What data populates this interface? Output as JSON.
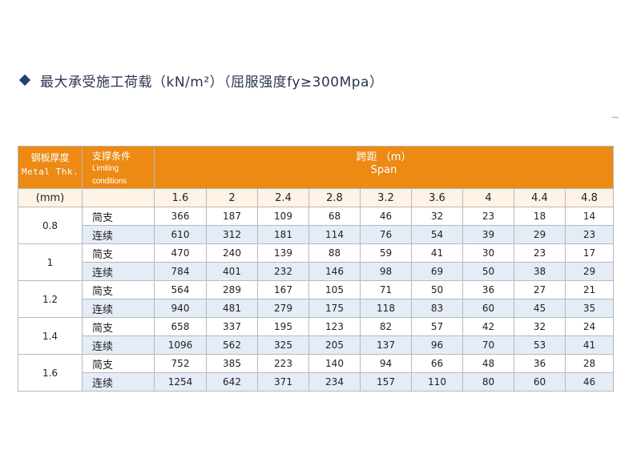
{
  "title": "最大承受施工荷载（kN/m²）（屈服强度fy≥300Mpa）",
  "table": {
    "header": {
      "thickness_cn": "钢板厚度",
      "thickness_en": "Metal Thk.",
      "support_cn": "支撑条件",
      "support_en": "Limiting conditions",
      "span_cn": "跨距 （m）",
      "span_en": "Span"
    },
    "unit": "(mm)",
    "spans": [
      "1.6",
      "2",
      "2.4",
      "2.8",
      "3.2",
      "3.6",
      "4",
      "4.4",
      "4.8"
    ],
    "groups": [
      {
        "thickness": "0.8",
        "rows": [
          {
            "condition": "简支",
            "values": [
              "366",
              "187",
              "109",
              "68",
              "46",
              "32",
              "23",
              "18",
              "14"
            ]
          },
          {
            "condition": "连续",
            "values": [
              "610",
              "312",
              "181",
              "114",
              "76",
              "54",
              "39",
              "29",
              "23"
            ]
          }
        ]
      },
      {
        "thickness": "1",
        "rows": [
          {
            "condition": "简支",
            "values": [
              "470",
              "240",
              "139",
              "88",
              "59",
              "41",
              "30",
              "23",
              "17"
            ]
          },
          {
            "condition": "连续",
            "values": [
              "784",
              "401",
              "232",
              "146",
              "98",
              "69",
              "50",
              "38",
              "29"
            ]
          }
        ]
      },
      {
        "thickness": "1.2",
        "rows": [
          {
            "condition": "简支",
            "values": [
              "564",
              "289",
              "167",
              "105",
              "71",
              "50",
              "36",
              "27",
              "21"
            ]
          },
          {
            "condition": "连续",
            "values": [
              "940",
              "481",
              "279",
              "175",
              "118",
              "83",
              "60",
              "45",
              "35"
            ]
          }
        ]
      },
      {
        "thickness": "1.4",
        "rows": [
          {
            "condition": "简支",
            "values": [
              "658",
              "337",
              "195",
              "123",
              "82",
              "57",
              "42",
              "32",
              "24"
            ]
          },
          {
            "condition": "连续",
            "values": [
              "1096",
              "562",
              "325",
              "205",
              "137",
              "96",
              "70",
              "53",
              "41"
            ]
          }
        ]
      },
      {
        "thickness": "1.6",
        "rows": [
          {
            "condition": "简支",
            "values": [
              "752",
              "385",
              "223",
              "140",
              "94",
              "66",
              "48",
              "36",
              "28"
            ]
          },
          {
            "condition": "连续",
            "values": [
              "1254",
              "642",
              "371",
              "234",
              "157",
              "110",
              "80",
              "60",
              "46"
            ]
          }
        ]
      }
    ]
  },
  "colors": {
    "header_orange": "#ec8a14",
    "alt_row_blue": "#e3ecf7",
    "accent_navy": "#1e3f7a"
  }
}
